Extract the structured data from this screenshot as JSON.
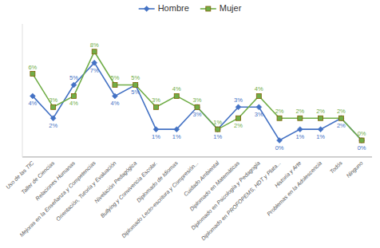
{
  "chart_data": {
    "type": "line",
    "categories": [
      "Uso de las TIC",
      "Taller de Ciencias",
      "Relaciones Humanas",
      "Mejoras en la Enseñanza y Competencias",
      "Orientación, Tutoría y Evaluación",
      "Nivelación Pedagógica",
      "Bullying y Convivencia Escolar.",
      "Diplomado de Idiomas",
      "Diplomado Lecto-escritura y Compresión...",
      "Cuidado Ambiental",
      "Diplomado en Matemáticas",
      "Diplomado en Psicología y Pedagogía",
      "Diplomado en PROFOPEMS, HDT y Plata...",
      "Historia y Arte",
      "Problemas en la Adolescencia",
      "Todós",
      "Ninguno"
    ],
    "series": [
      {
        "name": "Hombre",
        "color": "#4472c4",
        "marker": "diamond",
        "values": [
          4,
          2,
          5,
          7,
          4,
          5,
          1,
          1,
          3,
          1,
          3,
          3,
          0,
          1,
          1,
          2,
          0
        ],
        "value_labels": [
          "4%",
          "2%",
          "5%",
          "7%",
          "4%",
          "5%",
          "1%",
          "1%",
          "3%",
          "1%",
          "3%",
          "3%",
          "0%",
          "1%",
          "1%",
          "2%",
          "0%"
        ]
      },
      {
        "name": "Mujer",
        "color": "#70ad47",
        "marker": "square",
        "values": [
          6,
          3,
          4,
          8,
          5,
          5,
          3,
          4,
          3,
          1,
          2,
          4,
          2,
          2,
          2,
          2,
          0
        ],
        "value_labels": [
          "6%",
          "3%",
          "4%",
          "8%",
          "5%",
          "5%",
          "3%",
          "4%",
          "3%",
          "1%",
          "2%",
          "4%",
          "2%",
          "2%",
          "2%",
          "2%",
          "0%"
        ]
      }
    ],
    "ylim": [
      -1.5,
      10.5
    ],
    "data_labels": true,
    "tick_labels": "x",
    "grid": false,
    "legend": "top"
  }
}
